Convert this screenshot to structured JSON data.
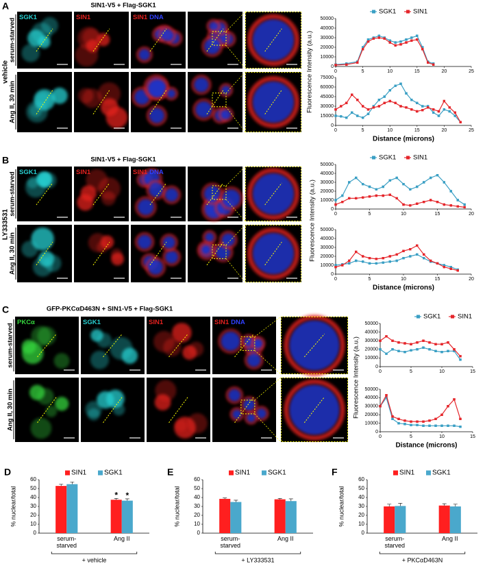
{
  "panels": [
    {
      "letter": "A",
      "title": "SIN1-V5 + Flag-SGK1",
      "treatment": "vehicle",
      "rows": [
        "serum-starved",
        "Ang II, 30 min"
      ],
      "channels": [
        [
          "SGK1"
        ],
        [
          "SIN1"
        ],
        [
          "SIN1",
          "DNA"
        ]
      ]
    },
    {
      "letter": "B",
      "title": "SIN1-V5 + Flag-SGK1",
      "treatment": "LY333531",
      "rows": [
        "serum-starved",
        "Ang II, 30 min"
      ],
      "channels": [
        [
          "SGK1"
        ],
        [
          "SIN1"
        ],
        [
          "SIN1",
          "DNA"
        ]
      ]
    },
    {
      "letter": "C",
      "title": "GFP-PKCαD463N + SIN1-V5 + Flag-SGK1",
      "rows": [
        "serum-starved",
        "Ang II, 30 min"
      ],
      "channels": [
        [
          "PKCα"
        ],
        [
          "SGK1"
        ],
        [
          "SIN1"
        ],
        [
          "SIN1",
          "DNA"
        ]
      ]
    }
  ],
  "chart_data": [
    {
      "type": "line",
      "ylabel": "Fluorescence Intensity (a.u.)",
      "legend": true,
      "x": [
        0,
        2,
        4,
        5,
        6,
        7,
        8,
        9,
        10,
        11,
        12,
        13,
        14,
        15,
        16,
        17,
        18
      ],
      "series": [
        {
          "name": "SGK1",
          "color": "#3a9fc4",
          "values": [
            2000,
            3000,
            5000,
            20000,
            28000,
            30000,
            32000,
            30000,
            27000,
            25000,
            26000,
            28000,
            30000,
            32000,
            20000,
            5000,
            3000
          ]
        },
        {
          "name": "SIN1",
          "color": "#e5262b",
          "values": [
            1500,
            2000,
            4000,
            18000,
            26000,
            29000,
            30000,
            29000,
            25000,
            22000,
            23000,
            25000,
            27000,
            28000,
            18000,
            4000,
            2000
          ]
        }
      ],
      "xlim": [
        0,
        25
      ],
      "xticks": [
        0,
        5,
        10,
        15,
        20,
        25
      ],
      "ylim": [
        0,
        50000
      ],
      "yticks": [
        0,
        10000,
        20000,
        30000,
        40000,
        50000
      ]
    },
    {
      "type": "line",
      "xlabel": "Distance (microns)",
      "x": [
        0,
        1,
        2,
        3,
        4,
        5,
        6,
        7,
        8,
        9,
        10,
        11,
        12,
        13,
        14,
        15,
        16,
        17,
        18,
        19,
        20,
        21,
        22,
        23
      ],
      "series": [
        {
          "color": "#3a9fc4",
          "values": [
            15000,
            14000,
            12000,
            20000,
            15000,
            12000,
            18000,
            30000,
            40000,
            45000,
            55000,
            62000,
            65000,
            50000,
            40000,
            35000,
            30000,
            30000,
            20000,
            15000,
            25000,
            22000,
            15000,
            5000
          ]
        },
        {
          "color": "#e5262b",
          "values": [
            25000,
            30000,
            35000,
            48000,
            40000,
            30000,
            25000,
            28000,
            30000,
            35000,
            38000,
            35000,
            30000,
            28000,
            25000,
            22000,
            24000,
            28000,
            25000,
            22000,
            38000,
            28000,
            20000,
            5000
          ]
        }
      ],
      "xlim": [
        0,
        25
      ],
      "xticks": [
        0,
        5,
        10,
        15,
        20,
        25
      ],
      "ylim": [
        0,
        75000
      ],
      "yticks": [
        0,
        15000,
        30000,
        45000,
        60000,
        75000
      ]
    },
    {
      "type": "line",
      "ylabel": "Fluorescence Intensity (a.u.)",
      "legend": true,
      "x": [
        0,
        1,
        2,
        3,
        4,
        5,
        6,
        7,
        8,
        9,
        10,
        11,
        12,
        13,
        14,
        15,
        16,
        17,
        18,
        19
      ],
      "series": [
        {
          "name": "SGK1",
          "color": "#3a9fc4",
          "values": [
            10000,
            15000,
            30000,
            35000,
            28000,
            25000,
            22000,
            25000,
            32000,
            35000,
            28000,
            22000,
            25000,
            30000,
            35000,
            38000,
            30000,
            20000,
            10000,
            5000
          ]
        },
        {
          "name": "SIN1",
          "color": "#e5262b",
          "values": [
            5000,
            8000,
            12000,
            12000,
            13000,
            14000,
            15000,
            15000,
            16000,
            12000,
            5000,
            4000,
            6000,
            8000,
            10000,
            8000,
            5000,
            4000,
            3000,
            2000
          ]
        }
      ],
      "xlim": [
        0,
        20
      ],
      "xticks": [
        0,
        5,
        10,
        15,
        20
      ],
      "ylim": [
        0,
        50000
      ],
      "yticks": [
        0,
        10000,
        20000,
        30000,
        40000,
        50000
      ]
    },
    {
      "type": "line",
      "xlabel": "Distance (microns)",
      "x": [
        0,
        1,
        2,
        3,
        4,
        5,
        6,
        7,
        8,
        9,
        10,
        11,
        12,
        13,
        14,
        15,
        16,
        17,
        18
      ],
      "series": [
        {
          "color": "#3a9fc4",
          "values": [
            10000,
            11000,
            12000,
            15000,
            14000,
            12000,
            12000,
            13000,
            14000,
            15000,
            18000,
            20000,
            22000,
            18000,
            14000,
            12000,
            10000,
            8000,
            5000
          ]
        },
        {
          "color": "#e5262b",
          "values": [
            8000,
            10000,
            15000,
            25000,
            20000,
            18000,
            17000,
            18000,
            20000,
            22000,
            26000,
            28000,
            32000,
            22000,
            15000,
            12000,
            8000,
            6000,
            4000
          ]
        }
      ],
      "xlim": [
        0,
        20
      ],
      "xticks": [
        0,
        5,
        10,
        15,
        20
      ],
      "ylim": [
        0,
        50000
      ],
      "yticks": [
        0,
        10000,
        20000,
        30000,
        40000,
        50000
      ]
    },
    {
      "type": "line",
      "ylabel": "Fluorescence Intensity (a.u.)",
      "legend": true,
      "x": [
        0,
        1,
        2,
        3,
        4,
        5,
        6,
        7,
        8,
        9,
        10,
        11,
        12,
        13
      ],
      "series": [
        {
          "name": "SGK1",
          "color": "#3a9fc4",
          "values": [
            20000,
            15000,
            20000,
            18000,
            17000,
            19000,
            20000,
            22000,
            20000,
            18000,
            17000,
            18000,
            18000,
            8000
          ]
        },
        {
          "name": "SIN1",
          "color": "#e5262b",
          "values": [
            30000,
            35000,
            30000,
            28000,
            27000,
            26000,
            28000,
            30000,
            28000,
            26000,
            26000,
            28000,
            20000,
            12000
          ]
        }
      ],
      "xlim": [
        0,
        15
      ],
      "xticks": [
        0,
        5,
        10,
        15
      ],
      "ylim": [
        0,
        50000
      ],
      "yticks": [
        0,
        10000,
        20000,
        30000,
        40000,
        50000
      ]
    },
    {
      "type": "line",
      "xlabel": "Distance (microns)",
      "x": [
        0,
        1,
        2,
        3,
        4,
        5,
        6,
        7,
        8,
        9,
        10,
        11,
        12,
        13
      ],
      "series": [
        {
          "color": "#3a9fc4",
          "values": [
            30000,
            40000,
            15000,
            10000,
            9000,
            8000,
            8000,
            7000,
            7000,
            7000,
            7000,
            7000,
            7000,
            6000
          ]
        },
        {
          "color": "#e5262b",
          "values": [
            30000,
            43000,
            18000,
            15000,
            13000,
            12000,
            12000,
            12000,
            13000,
            15000,
            20000,
            30000,
            38000,
            15000
          ]
        }
      ],
      "xlim": [
        0,
        15
      ],
      "xticks": [
        0,
        5,
        10,
        15
      ],
      "ylim": [
        0,
        50000
      ],
      "yticks": [
        0,
        10000,
        20000,
        30000,
        40000,
        50000
      ]
    },
    {
      "type": "bar",
      "panel_label": "D",
      "ylabel": "% nuclear/total",
      "group_label": "+ vehicle",
      "categories": [
        "serum-starved",
        "Ang II"
      ],
      "series": [
        {
          "name": "SIN1",
          "color": "#ff1f1f",
          "values": [
            53,
            37.5
          ],
          "errors": [
            2,
            1.5
          ],
          "marks": [
            null,
            "*"
          ]
        },
        {
          "name": "SGK1",
          "color": "#4aa8cc",
          "values": [
            55,
            36.5
          ],
          "errors": [
            2.5,
            2
          ],
          "marks": [
            null,
            "*"
          ]
        }
      ],
      "ylim": [
        0,
        60
      ],
      "yticks": [
        0,
        10,
        20,
        30,
        40,
        50,
        60
      ]
    },
    {
      "type": "bar",
      "panel_label": "E",
      "ylabel": "% nuclear/total",
      "group_label": "+ LY333531",
      "categories": [
        "serum-starved",
        "Ang II"
      ],
      "series": [
        {
          "name": "SIN1",
          "color": "#ff1f1f",
          "values": [
            38.5,
            38
          ],
          "errors": [
            1,
            1
          ]
        },
        {
          "name": "SGK1",
          "color": "#4aa8cc",
          "values": [
            35,
            36
          ],
          "errors": [
            2,
            2.5
          ]
        }
      ],
      "ylim": [
        0,
        60
      ],
      "yticks": [
        0,
        10,
        20,
        30,
        40,
        50,
        60
      ]
    },
    {
      "type": "bar",
      "panel_label": "F",
      "ylabel": "% nuclear/total",
      "group_label": "+ PKCαD463N",
      "categories": [
        "serum-starved",
        "Ang II"
      ],
      "series": [
        {
          "name": "SIN1",
          "color": "#ff1f1f",
          "values": [
            30,
            31
          ],
          "errors": [
            2.5,
            2
          ]
        },
        {
          "name": "SGK1",
          "color": "#4aa8cc",
          "values": [
            30.5,
            30
          ],
          "errors": [
            3,
            2.5
          ]
        }
      ],
      "ylim": [
        0,
        60
      ],
      "yticks": [
        0,
        10,
        20,
        30,
        40,
        50,
        60
      ]
    }
  ]
}
